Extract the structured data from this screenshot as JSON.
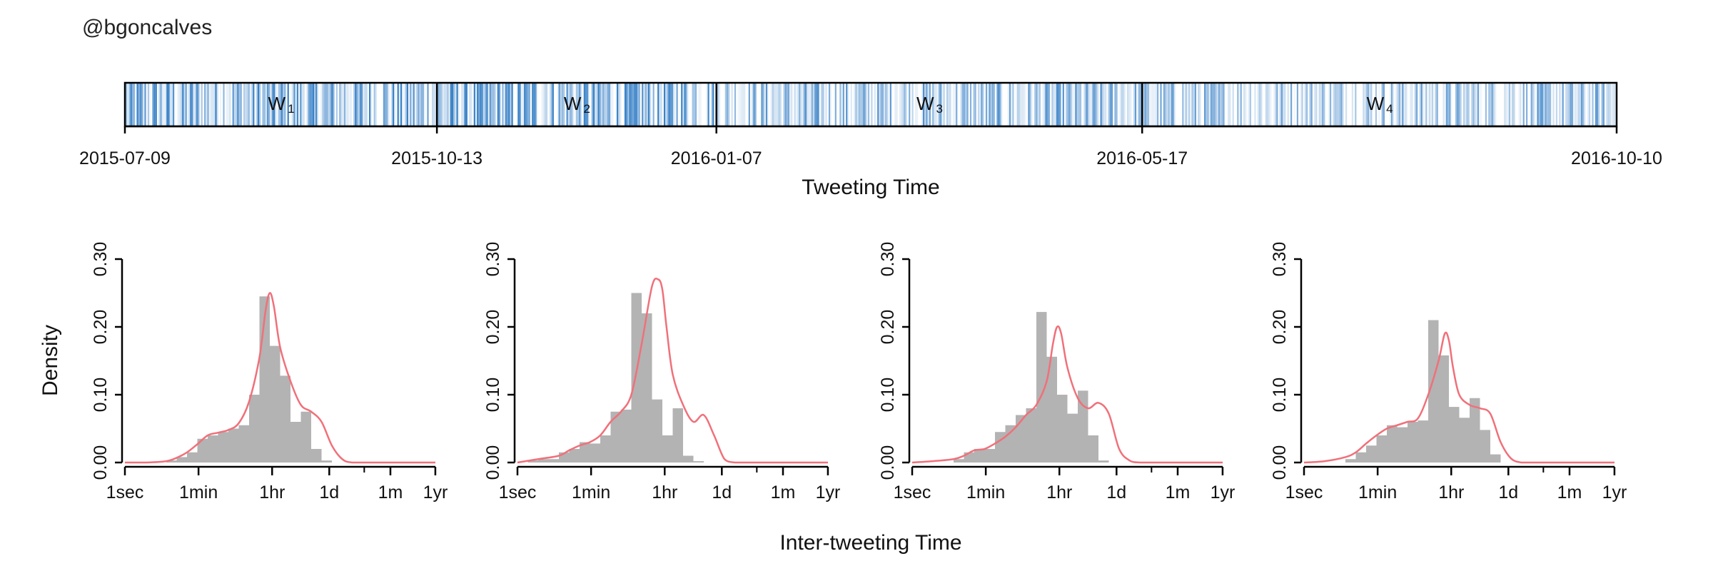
{
  "handle": "@bgoncalves",
  "colors": {
    "barcode": "#2f7bc4",
    "histogram": "#b3b3b3",
    "density_curve": "#f0707a",
    "axis": "#000000"
  },
  "chart_data": [
    {
      "type": "timeline",
      "xlabel": "Tweeting Time",
      "date_range": [
        "2015-07-09",
        "2016-10-10"
      ],
      "tick_labels": [
        "2015-07-09",
        "2015-10-13",
        "2016-01-07",
        "2016-05-17",
        "2016-10-10"
      ],
      "windows": [
        {
          "label": "W",
          "sub": "1",
          "start": "2015-07-09",
          "end": "2015-10-13",
          "intensity": 0.75
        },
        {
          "label": "W",
          "sub": "2",
          "start": "2015-10-13",
          "end": "2016-01-07",
          "intensity": 0.8
        },
        {
          "label": "W",
          "sub": "3",
          "start": "2016-01-07",
          "end": "2016-05-17",
          "intensity": 0.55
        },
        {
          "label": "W",
          "sub": "4",
          "start": "2016-05-17",
          "end": "2016-10-10",
          "intensity": 0.5
        }
      ]
    },
    {
      "type": "histogram_density",
      "ylabel": "Density",
      "xlabel": "Inter-tweeting Time",
      "x_scale": "log10_seconds",
      "x_ticks": [
        {
          "label": "1sec",
          "seconds": 1
        },
        {
          "label": "1min",
          "seconds": 60
        },
        {
          "label": "1hr",
          "seconds": 3600
        },
        {
          "label": "1d",
          "seconds": 86400
        },
        {
          "label": "1m",
          "seconds": 2592000
        },
        {
          "label": "1yr",
          "seconds": 31536000
        }
      ],
      "x_minor_ticks_seconds": [
        3600,
        604800,
        2592000
      ],
      "xlim_log10_seconds": [
        0,
        7.5
      ],
      "ylim": [
        0,
        0.3
      ],
      "y_ticks": [
        "0.00",
        "0.10",
        "0.20",
        "0.30"
      ],
      "panels": [
        {
          "window": "W1",
          "bins_log10_seconds": [
            1.0,
            1.25,
            1.5,
            1.75,
            2.0,
            2.25,
            2.5,
            2.75,
            3.0,
            3.25,
            3.5,
            3.75,
            4.0,
            4.25,
            4.5,
            4.75,
            5.0,
            5.25
          ],
          "hist": [
            0.003,
            0.008,
            0.015,
            0.035,
            0.04,
            0.045,
            0.05,
            0.055,
            0.1,
            0.245,
            0.172,
            0.128,
            0.06,
            0.075,
            0.02,
            0.003,
            0.0
          ],
          "density_x": [
            0.0,
            0.5,
            1.0,
            1.25,
            1.5,
            1.75,
            2.0,
            2.25,
            2.5,
            2.75,
            3.0,
            3.25,
            3.4,
            3.5,
            3.6,
            3.75,
            4.0,
            4.25,
            4.5,
            4.75,
            5.0,
            5.25,
            5.5,
            6.0,
            7.5
          ],
          "density_y": [
            0.0,
            0.0,
            0.002,
            0.007,
            0.015,
            0.027,
            0.04,
            0.044,
            0.048,
            0.058,
            0.09,
            0.155,
            0.225,
            0.25,
            0.23,
            0.17,
            0.12,
            0.085,
            0.075,
            0.06,
            0.025,
            0.005,
            0.0,
            0.0,
            0.0
          ]
        },
        {
          "window": "W2",
          "bins_log10_seconds": [
            0.0,
            0.25,
            0.5,
            0.75,
            1.0,
            1.25,
            1.5,
            1.75,
            2.0,
            2.25,
            2.5,
            2.75,
            3.0,
            3.25,
            3.5,
            3.75,
            4.0,
            4.25,
            4.5,
            4.75,
            5.0,
            5.25
          ],
          "hist": [
            0.0,
            0.003,
            0.005,
            0.005,
            0.015,
            0.02,
            0.03,
            0.028,
            0.04,
            0.075,
            0.078,
            0.25,
            0.22,
            0.093,
            0.04,
            0.08,
            0.01,
            0.002,
            0.0,
            0.0,
            0.0
          ],
          "density_x": [
            0.0,
            0.5,
            1.0,
            1.25,
            1.5,
            1.75,
            2.0,
            2.25,
            2.5,
            2.75,
            3.0,
            3.25,
            3.4,
            3.5,
            3.6,
            3.75,
            4.0,
            4.25,
            4.5,
            4.75,
            5.0,
            5.25,
            5.5,
            6.0,
            7.5
          ],
          "density_y": [
            0.0,
            0.005,
            0.01,
            0.018,
            0.025,
            0.03,
            0.04,
            0.06,
            0.075,
            0.1,
            0.175,
            0.26,
            0.27,
            0.255,
            0.2,
            0.13,
            0.085,
            0.06,
            0.07,
            0.04,
            0.005,
            0.0,
            0.0,
            0.0,
            0.0
          ]
        },
        {
          "window": "W3",
          "bins_log10_seconds": [
            1.0,
            1.25,
            1.5,
            1.75,
            2.0,
            2.25,
            2.5,
            2.75,
            3.0,
            3.25,
            3.5,
            3.75,
            4.0,
            4.25,
            4.5,
            4.75,
            5.0,
            5.25
          ],
          "hist": [
            0.005,
            0.015,
            0.02,
            0.02,
            0.045,
            0.055,
            0.07,
            0.08,
            0.222,
            0.156,
            0.1,
            0.072,
            0.106,
            0.04,
            0.003,
            0.0,
            0.0
          ],
          "density_x": [
            0.0,
            0.5,
            1.0,
            1.25,
            1.5,
            1.75,
            2.0,
            2.25,
            2.5,
            2.75,
            3.0,
            3.25,
            3.4,
            3.5,
            3.6,
            3.75,
            4.0,
            4.25,
            4.5,
            4.75,
            5.0,
            5.25,
            5.5,
            6.0,
            7.5
          ],
          "density_y": [
            0.0,
            0.002,
            0.005,
            0.01,
            0.018,
            0.02,
            0.028,
            0.038,
            0.052,
            0.07,
            0.085,
            0.12,
            0.175,
            0.2,
            0.19,
            0.14,
            0.095,
            0.08,
            0.088,
            0.072,
            0.02,
            0.003,
            0.0,
            0.0,
            0.0
          ]
        },
        {
          "window": "W4",
          "bins_log10_seconds": [
            1.0,
            1.25,
            1.5,
            1.75,
            2.0,
            2.25,
            2.5,
            2.75,
            3.0,
            3.25,
            3.5,
            3.75,
            4.0,
            4.25,
            4.5,
            4.75,
            5.0,
            5.25
          ],
          "hist": [
            0.005,
            0.015,
            0.025,
            0.04,
            0.055,
            0.052,
            0.06,
            0.062,
            0.21,
            0.158,
            0.082,
            0.066,
            0.095,
            0.048,
            0.012,
            0.0,
            0.0
          ],
          "density_x": [
            0.0,
            0.5,
            1.0,
            1.25,
            1.5,
            1.75,
            2.0,
            2.25,
            2.5,
            2.75,
            3.0,
            3.25,
            3.4,
            3.5,
            3.6,
            3.75,
            4.0,
            4.25,
            4.5,
            4.75,
            5.0,
            5.25,
            5.5,
            6.0,
            7.5
          ],
          "density_y": [
            0.0,
            0.002,
            0.008,
            0.015,
            0.028,
            0.04,
            0.05,
            0.055,
            0.06,
            0.065,
            0.1,
            0.15,
            0.19,
            0.18,
            0.14,
            0.1,
            0.085,
            0.08,
            0.072,
            0.03,
            0.006,
            0.0,
            0.0,
            0.0,
            0.0
          ]
        }
      ]
    }
  ]
}
